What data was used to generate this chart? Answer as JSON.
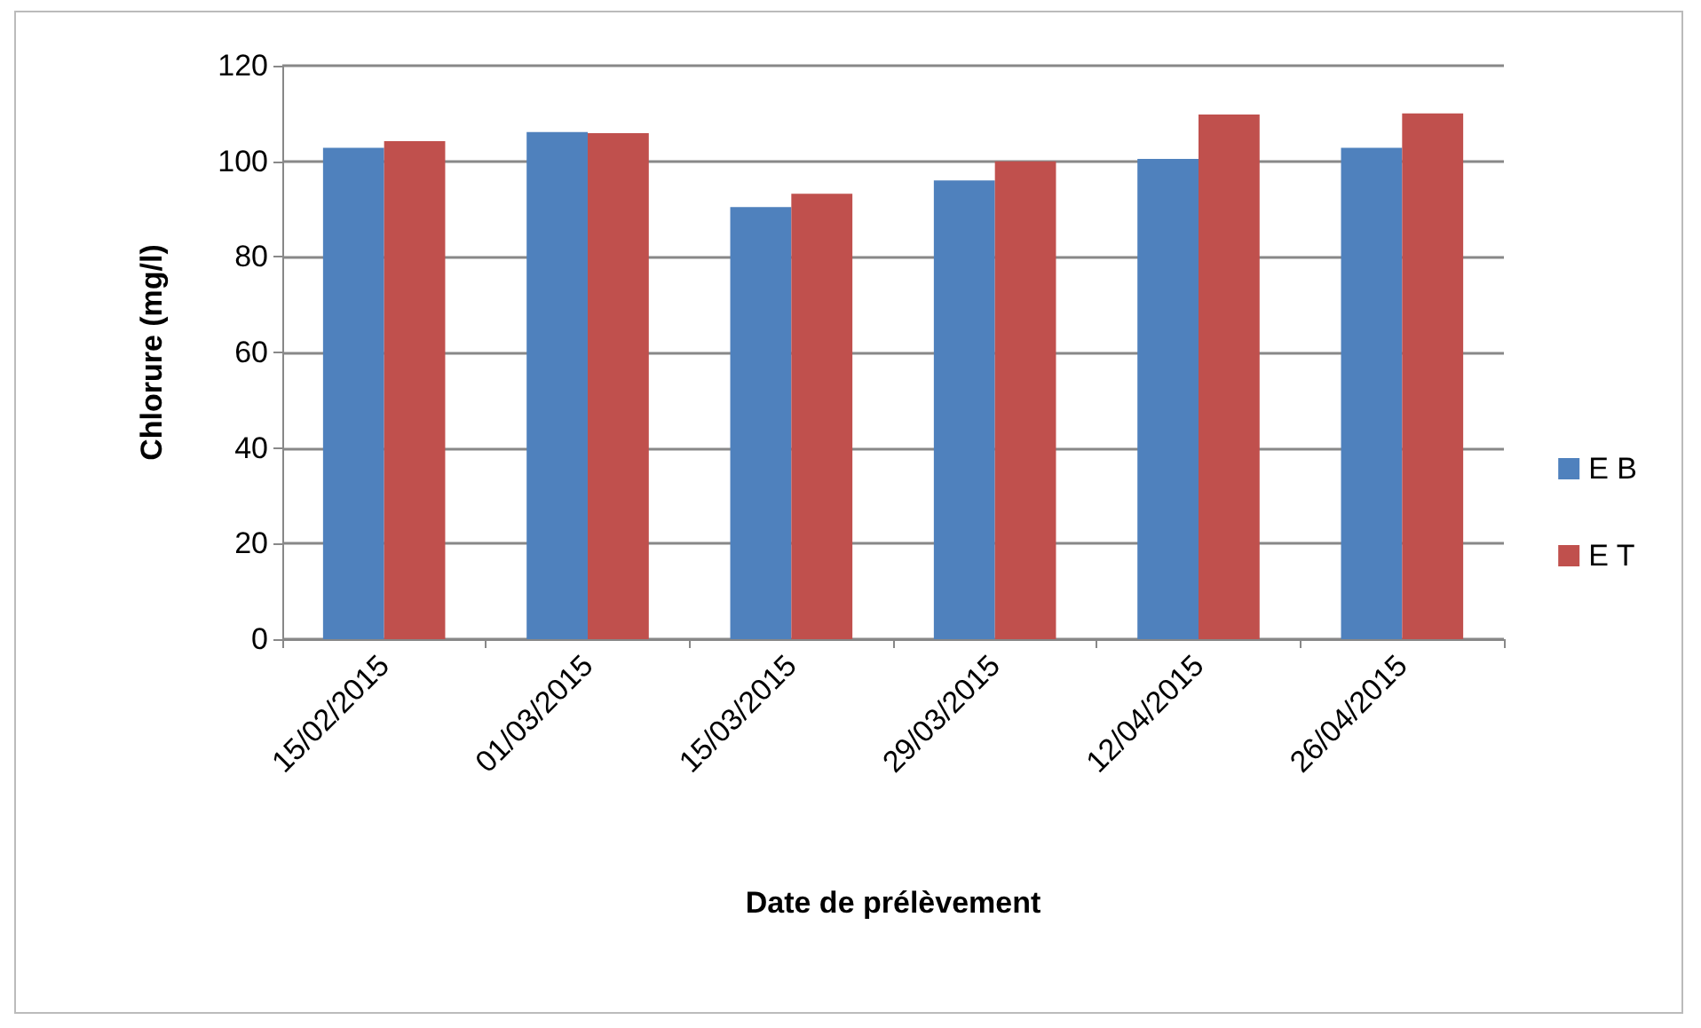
{
  "chart_data": {
    "type": "bar",
    "xlabel": "Date de prélèvement",
    "ylabel": "Chlorure (mg/l)",
    "categories": [
      "15/02/2015",
      "01/03/2015",
      "15/03/2015",
      "29/03/2015",
      "12/04/2015",
      "26/04/2015"
    ],
    "series": [
      {
        "name": "E B",
        "color": "#4f81bd",
        "values": [
          102.8,
          106.1,
          90.4,
          96,
          100.5,
          102.8
        ]
      },
      {
        "name": "E T",
        "color": "#c0504d",
        "values": [
          104.2,
          105.9,
          93.2,
          100,
          109.8,
          110
        ]
      }
    ],
    "ylim": [
      0,
      120
    ],
    "yticks": [
      0,
      20,
      40,
      60,
      80,
      100,
      120
    ],
    "grid": "y",
    "legend": "right"
  }
}
